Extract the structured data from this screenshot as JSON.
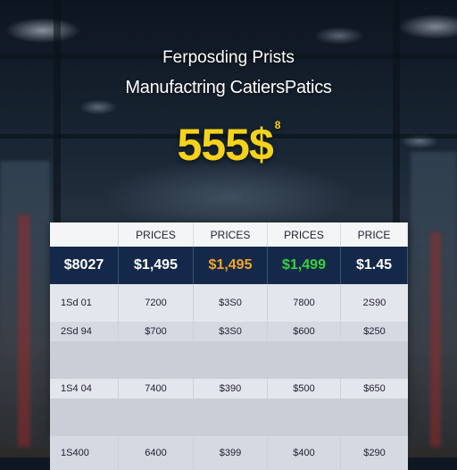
{
  "header": {
    "line1": "Ferposding Prists",
    "line2": "Manufactring CatiersPatics",
    "big_value": "555$",
    "big_sup": "8"
  },
  "table": {
    "headers": [
      "",
      "PRICES",
      "PRICES",
      "PRICES",
      "PRICE"
    ],
    "price_row": [
      "$8027",
      "$1,495",
      "$1,495",
      "$1,499",
      "$1.45"
    ],
    "price_colors": [
      "#ffffff",
      "#ffffff",
      "#f5a623",
      "#38d23a",
      "#ffffff"
    ],
    "rows": [
      [
        "1Sd 01",
        "7200",
        "$3S0",
        "7800",
        "2S90"
      ],
      [
        "2Sd 94",
        "$700",
        "$3S0",
        "$600",
        "$250"
      ],
      [
        "1S4 04",
        "7400",
        "$390",
        "$500",
        "$650"
      ],
      [
        "1S400",
        "6400",
        "$399",
        "$400",
        "$290"
      ]
    ]
  }
}
